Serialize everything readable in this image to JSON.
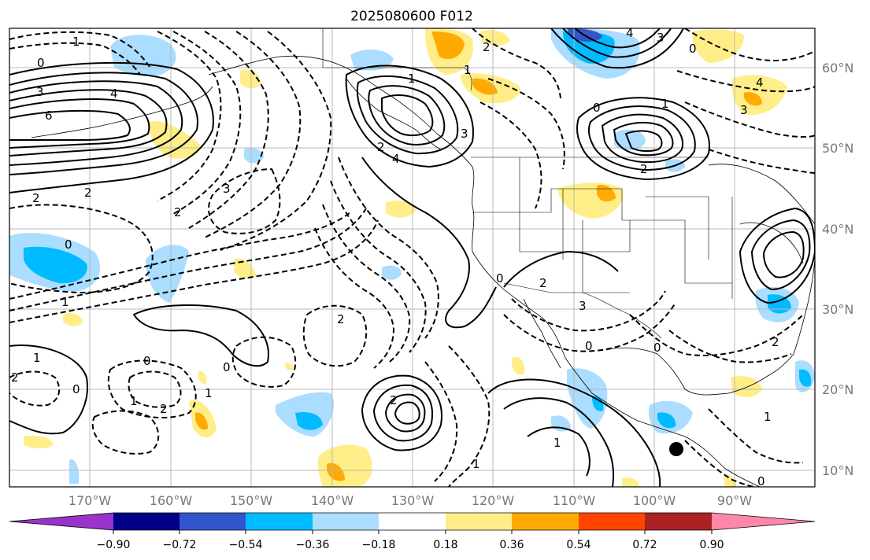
{
  "title": "2025080600 F012",
  "colors": {
    "very_neg": "#9933cc",
    "neg_090": "#000088",
    "neg_072": "#3355cc",
    "neg_054": "#00bbff",
    "neg_036": "#aaddff",
    "neutral": "#ffffff",
    "pos_018": "#ffee88",
    "pos_036": "#ffaa00",
    "pos_054": "#ff4400",
    "pos_072": "#aa2222",
    "pos_090": "#ff88aa"
  },
  "latitudes": [
    "60°N",
    "50°N",
    "40°N",
    "30°N",
    "20°N",
    "10°N"
  ],
  "longitudes": [
    "170°W",
    "160°W",
    "150°W",
    "140°W",
    "130°W",
    "120°W",
    "110°W",
    "100°W",
    "90°W"
  ],
  "colorbar": {
    "ticks": [
      "−0.90",
      "−0.72",
      "−0.54",
      "−0.36",
      "−0.18",
      "0.18",
      "0.36",
      "0.54",
      "0.72",
      "0.90"
    ]
  },
  "contour_labels": [
    {
      "text": "1"
    },
    {
      "text": "0"
    },
    {
      "text": "3"
    },
    {
      "text": "4"
    },
    {
      "text": "6"
    },
    {
      "text": "2"
    },
    {
      "text": "2"
    },
    {
      "text": "0"
    },
    {
      "text": "1"
    },
    {
      "text": "1"
    },
    {
      "text": "2"
    },
    {
      "text": "0"
    },
    {
      "text": "0"
    },
    {
      "text": "1"
    },
    {
      "text": "2"
    },
    {
      "text": "1"
    },
    {
      "text": "0"
    },
    {
      "text": "2"
    },
    {
      "text": "3"
    },
    {
      "text": "2"
    },
    {
      "text": "4"
    },
    {
      "text": "3"
    },
    {
      "text": "1"
    },
    {
      "text": "0"
    },
    {
      "text": "1"
    },
    {
      "text": "2"
    },
    {
      "text": "3"
    },
    {
      "text": "4"
    },
    {
      "text": "2"
    },
    {
      "text": "0"
    },
    {
      "text": "1"
    },
    {
      "text": "0"
    },
    {
      "text": "2"
    },
    {
      "text": "2"
    },
    {
      "text": "3"
    },
    {
      "text": "1"
    },
    {
      "text": "0"
    },
    {
      "text": "2"
    },
    {
      "text": "0"
    },
    {
      "text": "1"
    },
    {
      "text": "3"
    },
    {
      "text": "4"
    },
    {
      "text": "0"
    },
    {
      "text": "2"
    },
    {
      "text": "1"
    }
  ]
}
